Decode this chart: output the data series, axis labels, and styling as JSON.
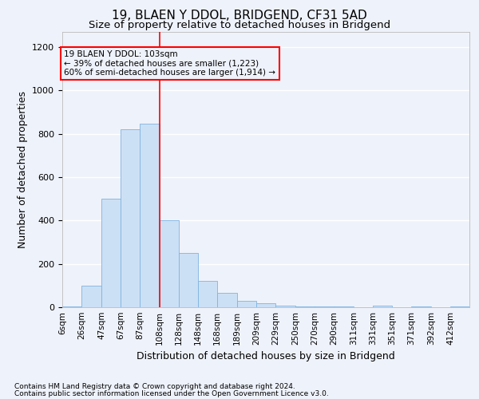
{
  "title": "19, BLAEN Y DDOL, BRIDGEND, CF31 5AD",
  "subtitle": "Size of property relative to detached houses in Bridgend",
  "xlabel": "Distribution of detached houses by size in Bridgend",
  "ylabel": "Number of detached properties",
  "footnote1": "Contains HM Land Registry data © Crown copyright and database right 2024.",
  "footnote2": "Contains public sector information licensed under the Open Government Licence v3.0.",
  "annotation_line1": "19 BLAEN Y DDOL: 103sqm",
  "annotation_line2": "← 39% of detached houses are smaller (1,223)",
  "annotation_line3": "60% of semi-detached houses are larger (1,914) →",
  "bar_color": "#cce0f5",
  "bar_edge_color": "#7fb3e0",
  "red_line_x": 108,
  "categories": [
    "6sqm",
    "26sqm",
    "47sqm",
    "67sqm",
    "87sqm",
    "108sqm",
    "128sqm",
    "148sqm",
    "168sqm",
    "189sqm",
    "209sqm",
    "229sqm",
    "250sqm",
    "270sqm",
    "290sqm",
    "311sqm",
    "331sqm",
    "351sqm",
    "371sqm",
    "392sqm",
    "412sqm"
  ],
  "bin_edges": [
    6,
    26,
    47,
    67,
    87,
    108,
    128,
    148,
    168,
    189,
    209,
    229,
    250,
    270,
    290,
    311,
    331,
    351,
    371,
    392,
    412,
    432
  ],
  "values": [
    5,
    100,
    500,
    820,
    845,
    400,
    250,
    120,
    65,
    30,
    20,
    8,
    4,
    2,
    2,
    0,
    8,
    0,
    4,
    0,
    2
  ],
  "ylim": [
    0,
    1270
  ],
  "yticks": [
    0,
    200,
    400,
    600,
    800,
    1000,
    1200
  ],
  "background_color": "#eef2fa",
  "grid_color": "#ffffff",
  "title_fontsize": 11,
  "subtitle_fontsize": 9.5,
  "axis_label_fontsize": 9,
  "tick_fontsize": 8,
  "xtick_fontsize": 7.5,
  "footnote_fontsize": 6.5
}
